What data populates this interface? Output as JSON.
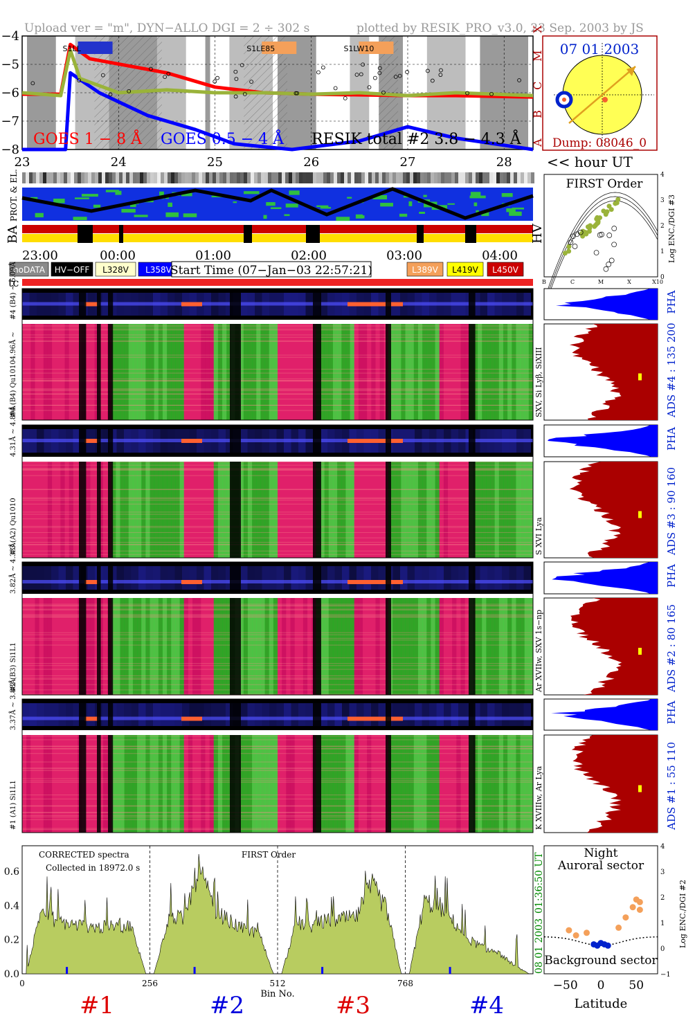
{
  "header": {
    "upload": "Upload ver = \"m\", DYN−ALLO DGI =   2 ÷ 302 s",
    "plotted": "plotted by RESIK_PRO_v3.0, 23 Sep. 2003 by JS"
  },
  "colors": {
    "red": "#ff0000",
    "blue": "#0000ff",
    "olive": "#9ab33a",
    "orange": "#f4a05a",
    "yellow": "#ffff00",
    "darkred": "#aa0000",
    "magenta": "#e0208a",
    "green": "#20b020",
    "gray": "#8a8a8a"
  },
  "goes_panel": {
    "yticks": [
      "−4",
      "−5",
      "−6",
      "−7",
      "−8"
    ],
    "flare_classes": [
      "X",
      "M",
      "C",
      "B",
      "A"
    ],
    "labels": {
      "goes_long": "GOES 1 − 8 Å",
      "goes_short": "GOES 0.5 − 4 Å",
      "resik_total": "RESIK total #2  3.8 − 4.3 Å"
    },
    "markers": [
      {
        "text": "S1LL",
        "color": "#2233cc",
        "pos": 0.12
      },
      {
        "text": "S1LE85",
        "color": "#f4a05a",
        "pos": 0.48
      },
      {
        "text": "S1LW10",
        "color": "#f4a05a",
        "pos": 0.67
      }
    ],
    "xtick_labels": [
      "23",
      "24",
      "25",
      "26",
      "27",
      "28"
    ],
    "hour_ut": "<< hour UT",
    "goes_long_series": [
      {
        "x": 23.0,
        "y": -6.05
      },
      {
        "x": 23.4,
        "y": -6.05
      },
      {
        "x": 23.5,
        "y": -4.3
      },
      {
        "x": 23.7,
        "y": -4.8
      },
      {
        "x": 24.5,
        "y": -5.3
      },
      {
        "x": 25.0,
        "y": -5.8
      },
      {
        "x": 25.5,
        "y": -6.0
      },
      {
        "x": 26.0,
        "y": -6.05
      },
      {
        "x": 27.0,
        "y": -6.1
      },
      {
        "x": 27.5,
        "y": -6.1
      },
      {
        "x": 28.3,
        "y": -6.15
      }
    ],
    "goes_short_series": [
      {
        "x": 23.0,
        "y": -8.0
      },
      {
        "x": 23.45,
        "y": -8.0
      },
      {
        "x": 23.5,
        "y": -5.3
      },
      {
        "x": 23.8,
        "y": -6.0
      },
      {
        "x": 24.3,
        "y": -6.8
      },
      {
        "x": 24.8,
        "y": -7.3
      },
      {
        "x": 25.2,
        "y": -7.8
      },
      {
        "x": 25.8,
        "y": -8.0
      },
      {
        "x": 26.5,
        "y": -7.7
      },
      {
        "x": 27.0,
        "y": -7.2
      },
      {
        "x": 27.5,
        "y": -7.6
      },
      {
        "x": 28.3,
        "y": -8.0
      }
    ],
    "resik_series": [
      {
        "x": 23.0,
        "y": -6.0
      },
      {
        "x": 23.4,
        "y": -6.1
      },
      {
        "x": 23.5,
        "y": -4.5
      },
      {
        "x": 23.6,
        "y": -5.5
      },
      {
        "x": 24.0,
        "y": -6.0
      },
      {
        "x": 24.5,
        "y": -5.9
      },
      {
        "x": 25.0,
        "y": -6.0
      },
      {
        "x": 25.5,
        "y": -6.0
      },
      {
        "x": 26.0,
        "y": -6.05
      },
      {
        "x": 26.5,
        "y": -6.0
      },
      {
        "x": 27.0,
        "y": -6.1
      },
      {
        "x": 27.5,
        "y": -6.0
      },
      {
        "x": 28.3,
        "y": -6.1
      }
    ]
  },
  "sun_panel": {
    "date": "07 01 2003",
    "dump": "Dump: 08046_0"
  },
  "strips": {
    "prot_el": "PROT. & EL.",
    "ba": "BA",
    "hv": "HV",
    "time_labels": [
      "23:00",
      "00:00",
      "01:00",
      "02:00",
      "03:00",
      "04:00"
    ]
  },
  "legend": {
    "items_left": [
      {
        "text": "noDATA",
        "bg": "#8a8a8a",
        "fg": "#ffffff"
      },
      {
        "text": "HV−OFF",
        "bg": "#000000",
        "fg": "#ffffff"
      },
      {
        "text": "L328V",
        "bg": "#ffffcc",
        "fg": "#000000"
      },
      {
        "text": "L358V",
        "bg": "#0000ff",
        "fg": "#ffffff"
      }
    ],
    "start_time": "Start Time (07−Jan−03 22:57:21)",
    "items_right": [
      {
        "text": "L389V",
        "bg": "#f4a05a",
        "fg": "#ffffff"
      },
      {
        "text": "L419V",
        "bg": "#ffff00",
        "fg": "#000000"
      },
      {
        "text": "L450V",
        "bg": "#cc0000",
        "fg": "#ffffff"
      }
    ]
  },
  "tc_label": "tc",
  "first_order": {
    "title": "FIRST Order",
    "xticks": [
      "B",
      "C",
      "M",
      "X",
      "X10"
    ],
    "yticks": [
      "0",
      "1",
      "2",
      "3",
      "4"
    ],
    "ylabel": "Log ENC./DGI #3"
  },
  "channels": [
    {
      "id": 4,
      "pha_label": "#4 (B4) ~ 6.09Å",
      "spec_label": "#4 (B4) Qu10104.96Å ~",
      "right_label": "SXV, Si Lyβ, SiXIII",
      "ads": "ADS #4 :   135 200",
      "pha": "PHA"
    },
    {
      "id": 3,
      "pha_label": "4.31Å ~ 4.89Å",
      "spec_label": "#3 (A2) Qu1010",
      "right_label": "S XVI Lya",
      "ads": "ADS #3 :    90 160",
      "pha": "PHA"
    },
    {
      "id": 2,
      "pha_label": "3.82Å ~ 4.33Å",
      "spec_label": "#2 (B3) Si1L1",
      "right_label": "Ar XVIIw, SXV 1s−np",
      "ads": "ADS #2 :    80 165",
      "pha": "PHA"
    },
    {
      "id": 1,
      "pha_label": "3.37Å ~ 3.88Å",
      "spec_label": "#1 (A1) Si1L1",
      "right_label": "K XVIIIw, Ar Lya",
      "ads": "ADS #1 :    55 110",
      "pha": "PHA"
    }
  ],
  "bottom_spectrum": {
    "corrected": "CORRECTED spectra",
    "collected": "Collected in 18972.0 s",
    "first_order": "FIRST Order",
    "yticks": [
      "0.0",
      "0.2",
      "0.4",
      "0.6"
    ],
    "xticks": [
      "0",
      "256",
      "512",
      "768"
    ],
    "xlabel": "Bin No.",
    "right_date": "08 01 2003",
    "right_time": "01:36:50 UT",
    "channel_labels": [
      {
        "text": "#1",
        "color": "#dd0000"
      },
      {
        "text": "#2",
        "color": "#0000dd"
      },
      {
        "text": "#3",
        "color": "#dd0000"
      },
      {
        "text": "#4",
        "color": "#0000dd"
      }
    ]
  },
  "auroral": {
    "night": "Night",
    "sector": "Auroral sector",
    "background": "Background sector",
    "xticks": [
      "−50",
      "0",
      "50"
    ],
    "yticks": [
      "−1",
      "0",
      "1",
      "2",
      "3",
      "4"
    ],
    "xlabel": "Latitude",
    "ylabel": "Log ENC./DGI #2"
  },
  "chart_data": [
    {
      "type": "line",
      "title": "",
      "xlabel": "hour UT",
      "ylabel": "",
      "xlim": [
        23.0,
        28.3
      ],
      "ylim": [
        -8,
        -4
      ],
      "series": [
        {
          "name": "GOES 1 − 8 Å",
          "color": "#ff0000"
        },
        {
          "name": "GOES 0.5 − 4 Å",
          "color": "#0000ff"
        },
        {
          "name": "RESIK total #2  3.8 − 4.3 Å",
          "color": "#9ab33a"
        }
      ]
    },
    {
      "type": "area",
      "title": "",
      "xlabel": "Bin No.",
      "ylabel": "",
      "xlim": [
        0,
        1024
      ],
      "ylim": [
        0,
        0.75
      ],
      "channel_bounds": [
        0,
        256,
        512,
        768,
        1024
      ],
      "channel_profiles": [
        {
          "name": "#1",
          "values": [
            0.0,
            0.38,
            0.31,
            0.29,
            0.28,
            0.27,
            0.28,
            0.28,
            0.0
          ]
        },
        {
          "name": "#2",
          "values": [
            0.0,
            0.34,
            0.32,
            0.62,
            0.38,
            0.31,
            0.26,
            0.24,
            0.0
          ]
        },
        {
          "name": "#3",
          "values": [
            0.0,
            0.3,
            0.28,
            0.31,
            0.32,
            0.33,
            0.52,
            0.38,
            0.0
          ]
        },
        {
          "name": "#4",
          "values": [
            0.0,
            0.42,
            0.4,
            0.3,
            0.2,
            0.15,
            0.12,
            0.05,
            0.0
          ]
        }
      ]
    },
    {
      "type": "scatter",
      "title": "",
      "xlabel": "Latitude",
      "ylabel": "Log ENC./DGI #2",
      "xlim": [
        -80,
        80
      ],
      "ylim": [
        -1,
        4
      ],
      "series": [
        {
          "name": "",
          "points": [
            [
              -45,
              0.7
            ],
            [
              -35,
              0.5
            ],
            [
              -20,
              0.6
            ],
            [
              25,
              0.8
            ],
            [
              35,
              1.2
            ],
            [
              45,
              1.6
            ],
            [
              50,
              1.9
            ],
            [
              55,
              1.5
            ],
            [
              55,
              1.8
            ]
          ]
        },
        {
          "name": "",
          "points": [
            [
              -10,
              0.15
            ],
            [
              -5,
              0.1
            ],
            [
              0,
              0.2
            ],
            [
              5,
              0.15
            ],
            [
              10,
              0.1
            ]
          ]
        }
      ]
    }
  ]
}
